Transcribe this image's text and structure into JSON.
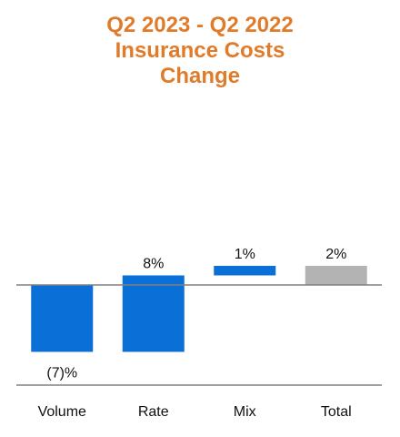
{
  "title_lines": [
    "Q2 2023 - Q2 2022",
    "Insurance Costs",
    "Change"
  ],
  "colors": {
    "title": "#e07b2a",
    "bar": "#0a6fd6",
    "total": "#b3b3b3",
    "axis": "#808080"
  },
  "chart_data": {
    "type": "bar",
    "subtype": "waterfall",
    "title": "Q2 2023 - Q2 2022 Insurance Costs Change",
    "categories": [
      "Volume",
      "Rate",
      "Mix",
      "Total"
    ],
    "values": [
      -7,
      8,
      1,
      2
    ],
    "cumulative_end": [
      -7,
      1,
      2,
      2
    ],
    "data_labels": [
      "(7)%",
      "8%",
      "1%",
      "2%"
    ],
    "unit": "%",
    "ylim": [
      -10,
      4
    ],
    "grid": false,
    "legend": "none"
  }
}
